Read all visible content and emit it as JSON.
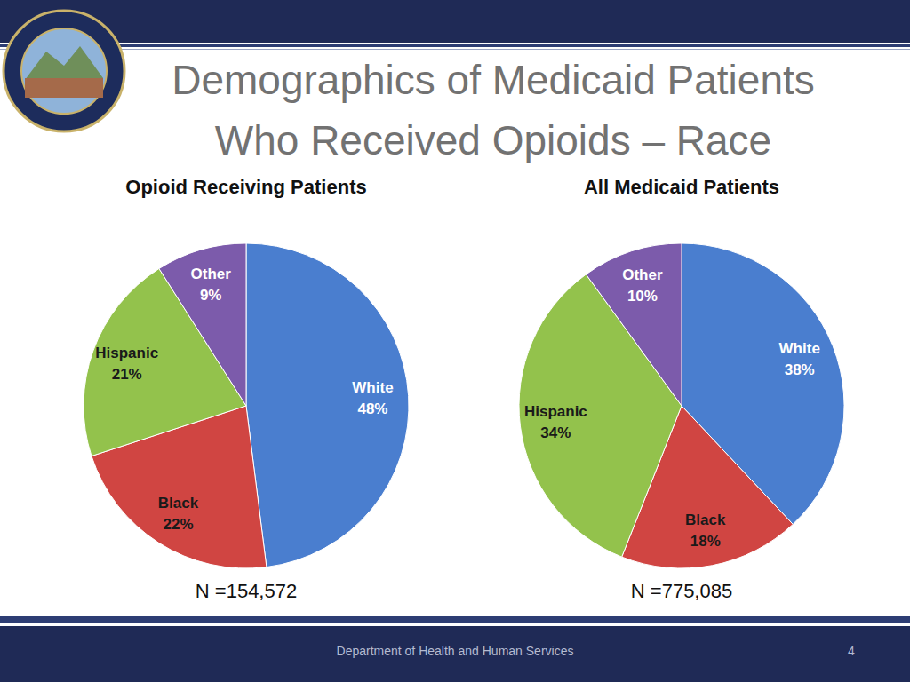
{
  "slide": {
    "title_lines": [
      "Demographics of Medicaid Patients",
      "Who Received Opioids – Race"
    ],
    "footer": "Department of Health and Human Services",
    "page_number": 4
  },
  "chart_data": [
    {
      "type": "pie",
      "title": "Opioid Receiving Patients",
      "categories": [
        "White",
        "Black",
        "Hispanic",
        "Other"
      ],
      "values": [
        48,
        22,
        21,
        9
      ],
      "value_labels": [
        "48%",
        "22%",
        "21%",
        "9%"
      ],
      "colors": [
        "#4a7ecf",
        "#d04542",
        "#93c24c",
        "#7c5bab"
      ],
      "data_labels": true,
      "annotation": "N =154,572"
    },
    {
      "type": "pie",
      "title": "All Medicaid Patients",
      "categories": [
        "White",
        "Black",
        "Hispanic",
        "Other"
      ],
      "values": [
        38,
        18,
        34,
        10
      ],
      "value_labels": [
        "38%",
        "18%",
        "34%",
        "10%"
      ],
      "colors": [
        "#4a7ecf",
        "#d04542",
        "#93c24c",
        "#7c5bab"
      ],
      "data_labels": true,
      "annotation": "N =775,085"
    }
  ]
}
